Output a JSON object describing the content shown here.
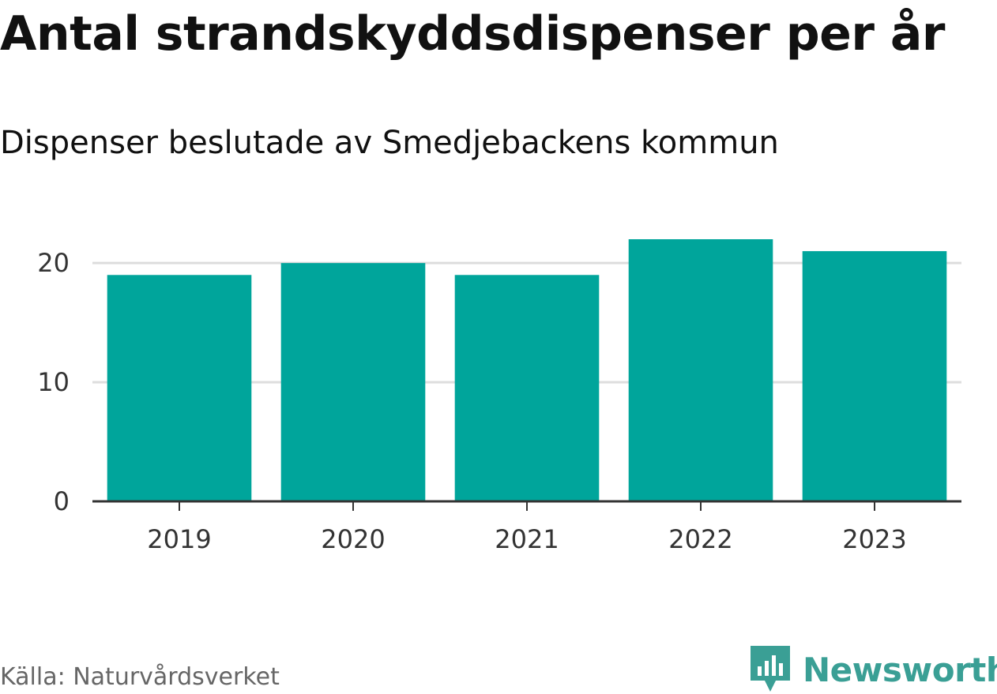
{
  "chart_data": {
    "type": "bar",
    "title": "Antal strandskyddsdispenser per år",
    "subtitle": "Dispenser beslutade av Smedjebackens kommun",
    "categories": [
      "2019",
      "2020",
      "2021",
      "2022",
      "2023"
    ],
    "values": [
      19,
      20,
      19,
      22,
      21
    ],
    "series": [
      {
        "name": "Antal strandskyddsdispenser",
        "values": [
          19,
          20,
          19,
          22,
          21
        ]
      }
    ],
    "xlabel": "",
    "ylabel": "",
    "ylim": [
      0,
      22
    ],
    "yticks": [
      0,
      10,
      20
    ],
    "ytick_labels": [
      "0",
      "10",
      "20"
    ],
    "grid": true,
    "bar_color": "#00a59b",
    "legend": "none"
  },
  "footer": {
    "source": "Källa: Naturvårdsverket",
    "brand": "Newsworthy",
    "brand_color": "#3a9f95",
    "brand_icon": "newsworthy-logo-icon"
  }
}
